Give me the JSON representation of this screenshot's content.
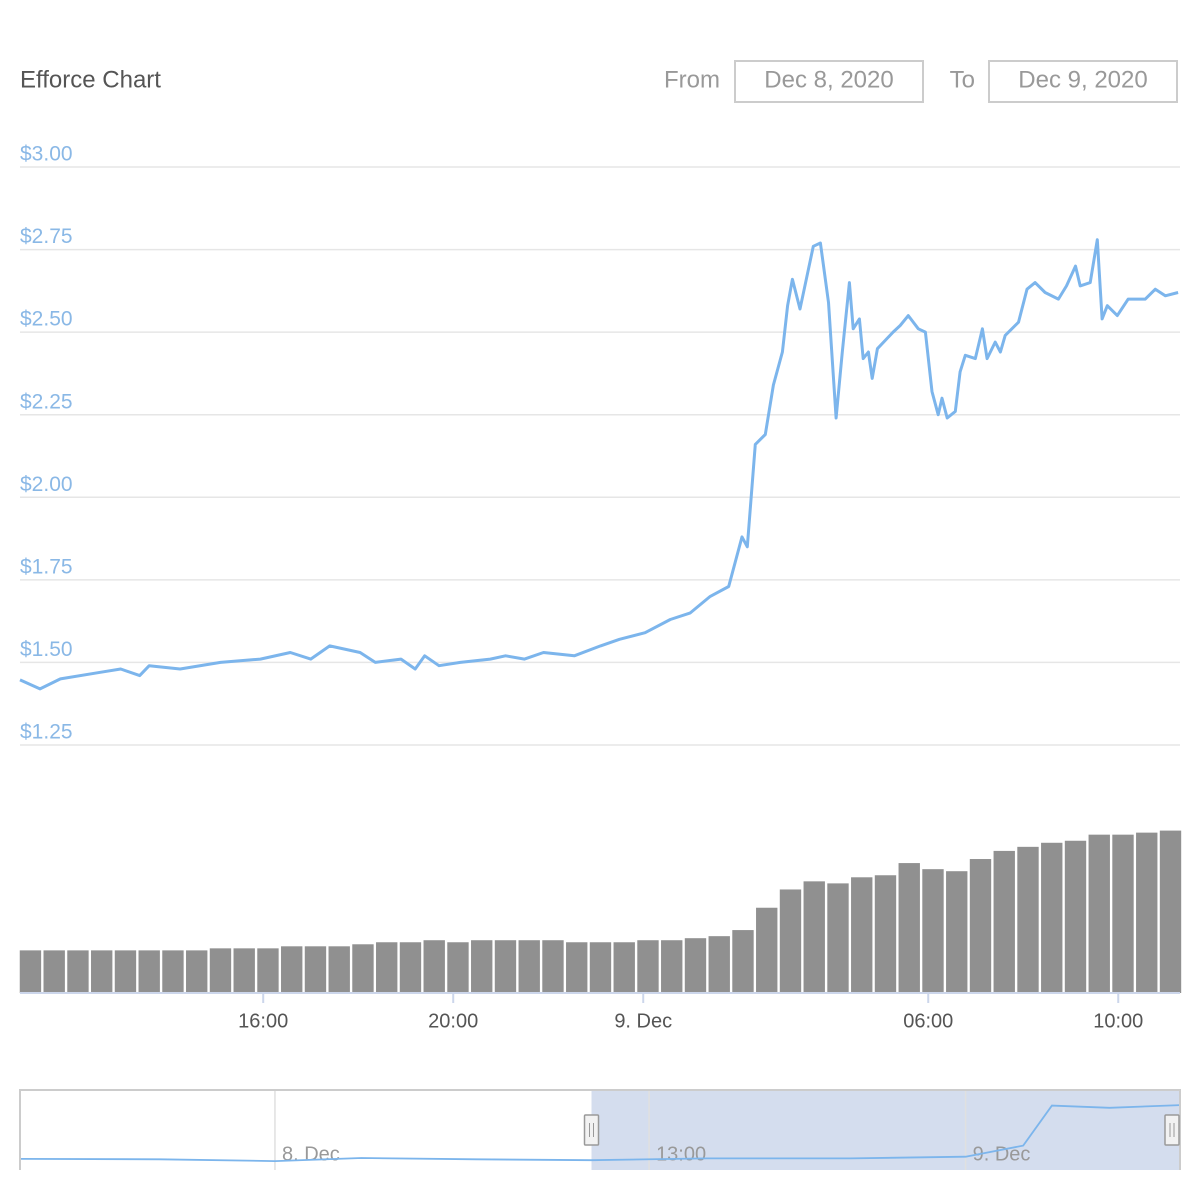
{
  "chart_data": {
    "type": "stock",
    "title": "Efforce Chart",
    "range_selector": {
      "from_label": "From",
      "from": "Dec 8, 2020",
      "to_label": "To",
      "to": "Dec 9, 2020"
    },
    "xlim": [
      10.88,
      35.3
    ],
    "xticks": [
      {
        "value": 16,
        "label": "16:00"
      },
      {
        "value": 20,
        "label": "20:00"
      },
      {
        "value": 24,
        "label": "9. Dec"
      },
      {
        "value": 30,
        "label": "06:00"
      },
      {
        "value": 34,
        "label": "10:00"
      }
    ],
    "ylim": [
      1.25,
      3.0
    ],
    "yticks": [
      {
        "value": 1.25,
        "label": "$1.25"
      },
      {
        "value": 1.5,
        "label": "$1.50"
      },
      {
        "value": 1.75,
        "label": "$1.75"
      },
      {
        "value": 2.0,
        "label": "$2.00"
      },
      {
        "value": 2.25,
        "label": "$2.25"
      },
      {
        "value": 2.5,
        "label": "$2.50"
      },
      {
        "value": 2.75,
        "label": "$2.75"
      },
      {
        "value": 3.0,
        "label": "$3.00"
      }
    ],
    "y2lim": [
      0,
      100
    ],
    "grid": true,
    "series": [
      {
        "type": "line",
        "color": "#7cb5ec",
        "x": [
          10.88,
          11.3,
          11.73,
          12.57,
          13.0,
          13.4,
          13.6,
          14.25,
          15.1,
          15.94,
          16.57,
          17.0,
          17.4,
          18.04,
          18.36,
          18.9,
          19.2,
          19.4,
          19.7,
          20.15,
          20.78,
          21.1,
          21.5,
          21.9,
          22.55,
          23.1,
          23.5,
          24.04,
          24.57,
          24.99,
          25.41,
          25.8,
          26.08,
          26.19,
          26.36,
          26.57,
          26.74,
          26.93,
          27.04,
          27.14,
          27.3,
          27.58,
          27.73,
          27.9,
          28.06,
          28.19,
          28.34,
          28.42,
          28.55,
          28.63,
          28.74,
          28.82,
          28.93,
          29.26,
          29.41,
          29.58,
          29.79,
          29.94,
          30.08,
          30.21,
          30.29,
          30.4,
          30.57,
          30.67,
          30.78,
          30.99,
          31.14,
          31.24,
          31.41,
          31.52,
          31.62,
          31.9,
          32.08,
          32.25,
          32.46,
          32.74,
          32.91,
          33.1,
          33.2,
          33.41,
          33.56,
          33.66,
          33.77,
          33.98,
          34.21,
          34.57,
          34.78,
          34.99,
          35.26
        ],
        "values": [
          1.447,
          1.42,
          1.45,
          1.47,
          1.48,
          1.46,
          1.49,
          1.48,
          1.5,
          1.51,
          1.53,
          1.51,
          1.55,
          1.53,
          1.5,
          1.51,
          1.48,
          1.52,
          1.49,
          1.5,
          1.51,
          1.52,
          1.51,
          1.53,
          1.52,
          1.55,
          1.57,
          1.59,
          1.63,
          1.65,
          1.7,
          1.73,
          1.88,
          1.85,
          2.16,
          2.19,
          2.34,
          2.44,
          2.58,
          2.66,
          2.57,
          2.76,
          2.77,
          2.59,
          2.24,
          2.44,
          2.65,
          2.51,
          2.54,
          2.42,
          2.44,
          2.36,
          2.45,
          2.5,
          2.52,
          2.55,
          2.51,
          2.5,
          2.32,
          2.25,
          2.3,
          2.24,
          2.26,
          2.38,
          2.43,
          2.42,
          2.51,
          2.42,
          2.47,
          2.44,
          2.49,
          2.53,
          2.63,
          2.65,
          2.62,
          2.6,
          2.64,
          2.7,
          2.64,
          2.65,
          2.78,
          2.54,
          2.58,
          2.55,
          2.6,
          2.6,
          2.63,
          2.61,
          2.62
        ]
      },
      {
        "type": "column",
        "color": "#909090",
        "axis": "y2",
        "x": [
          11.1,
          11.6,
          12.1,
          12.6,
          13.1,
          13.6,
          14.1,
          14.6,
          15.1,
          15.6,
          16.1,
          16.6,
          17.1,
          17.6,
          18.1,
          18.6,
          19.1,
          19.6,
          20.1,
          20.6,
          21.1,
          21.6,
          22.1,
          22.6,
          23.1,
          23.6,
          24.1,
          24.6,
          25.1,
          25.6,
          26.1,
          26.6,
          27.1,
          27.6,
          28.1,
          28.6,
          29.1,
          29.6,
          30.1,
          30.6,
          31.1,
          31.6,
          32.1,
          32.6,
          33.1,
          33.6,
          34.1,
          34.6,
          35.1
        ],
        "values": [
          21,
          21,
          21,
          21,
          21,
          21,
          21,
          21,
          22,
          22,
          22,
          23,
          23,
          23,
          24,
          25,
          25,
          26,
          25,
          26,
          26,
          26,
          26,
          25,
          25,
          25,
          26,
          26,
          27,
          28,
          31,
          42,
          51,
          55,
          54,
          57,
          58,
          64,
          61,
          60,
          66,
          70,
          72,
          74,
          75,
          78,
          78,
          79,
          80
        ]
      }
    ],
    "navigator": {
      "color": "#7cb5ec",
      "xlim": [
        -8.86,
        31.45
      ],
      "ylim": [
        1.2,
        3.0
      ],
      "selected_range": [
        11,
        31.45
      ],
      "xticks": [
        {
          "value": 0,
          "label": "8. Dec"
        },
        {
          "value": 13,
          "label": "13:00"
        },
        {
          "value": 24,
          "label": "9. Dec"
        }
      ],
      "x": [
        -8.86,
        -4,
        0,
        3,
        7,
        11,
        15,
        20,
        24,
        26,
        27,
        29,
        31.45
      ],
      "values": [
        1.45,
        1.44,
        1.4,
        1.47,
        1.44,
        1.42,
        1.46,
        1.46,
        1.5,
        1.75,
        2.65,
        2.6,
        2.66
      ]
    }
  }
}
